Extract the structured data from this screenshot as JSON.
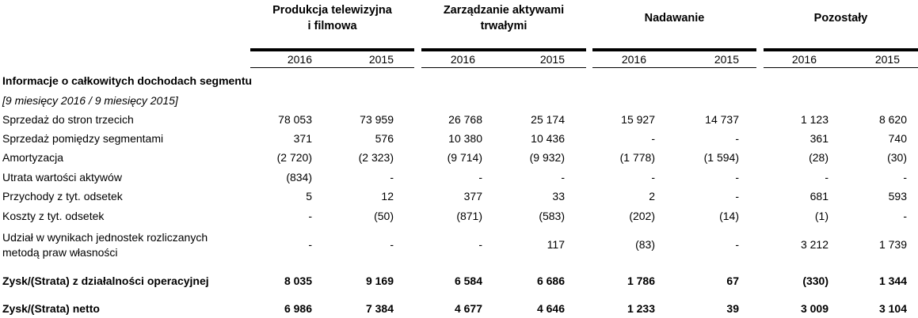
{
  "segments": [
    {
      "title_line1": "Produkcja telewizyjna",
      "title_line2": "i filmowa",
      "year_a": "2016",
      "year_b": "2015"
    },
    {
      "title_line1": "Zarządzanie aktywami",
      "title_line2": "trwałymi",
      "year_a": "2016",
      "year_b": "2015"
    },
    {
      "title_line1": "Nadawanie",
      "title_line2": "",
      "year_a": "2016",
      "year_b": "2015"
    },
    {
      "title_line1": "Pozostały",
      "title_line2": "",
      "year_a": "2016",
      "year_b": "2015"
    }
  ],
  "section_title": "Informacje o całkowitych dochodach segmentu",
  "period": "[9 miesięcy 2016 / 9 miesięcy 2015]",
  "rows": [
    {
      "label": "Sprzedaż do stron trzecich",
      "values": [
        "78 053",
        "73 959",
        "26 768",
        "25 174",
        "15 927",
        "14 737",
        "1 123",
        "8 620"
      ]
    },
    {
      "label": "Sprzedaż pomiędzy segmentami",
      "values": [
        "371",
        "576",
        "10 380",
        "10 436",
        "-",
        "-",
        "361",
        "740"
      ]
    },
    {
      "label": "Amortyzacja",
      "values": [
        "(2 720)",
        "(2 323)",
        "(9 714)",
        "(9 932)",
        "(1 778)",
        "(1 594)",
        "(28)",
        "(30)"
      ]
    },
    {
      "label": "Utrata wartości aktywów",
      "values": [
        "(834)",
        "-",
        "-",
        "-",
        "-",
        "-",
        "-",
        "-"
      ]
    },
    {
      "label": "Przychody z tyt. odsetek",
      "values": [
        "5",
        "12",
        "377",
        "33",
        "2",
        "-",
        "681",
        "593"
      ]
    },
    {
      "label": "Koszty z tyt. odsetek",
      "values": [
        "-",
        "(50)",
        "(871)",
        "(583)",
        "(202)",
        "(14)",
        "(1)",
        "-"
      ]
    },
    {
      "label_line1": "Udział w wynikach jednostek rozliczanych",
      "label_line2": "metodą praw własności",
      "values": [
        "-",
        "-",
        "-",
        "117",
        "(83)",
        "-",
        "3 212",
        "1 739"
      ]
    },
    {
      "label": "Zysk/(Strata) z działalności operacyjnej",
      "values": [
        "8 035",
        "9 169",
        "6 584",
        "6 686",
        "1 786",
        "67",
        "(330)",
        "1 344"
      ]
    },
    {
      "label": "Zysk/(Strata) netto",
      "values": [
        "6 986",
        "7 384",
        "4 677",
        "4 646",
        "1 233",
        "39",
        "3 009",
        "3 104"
      ]
    }
  ]
}
